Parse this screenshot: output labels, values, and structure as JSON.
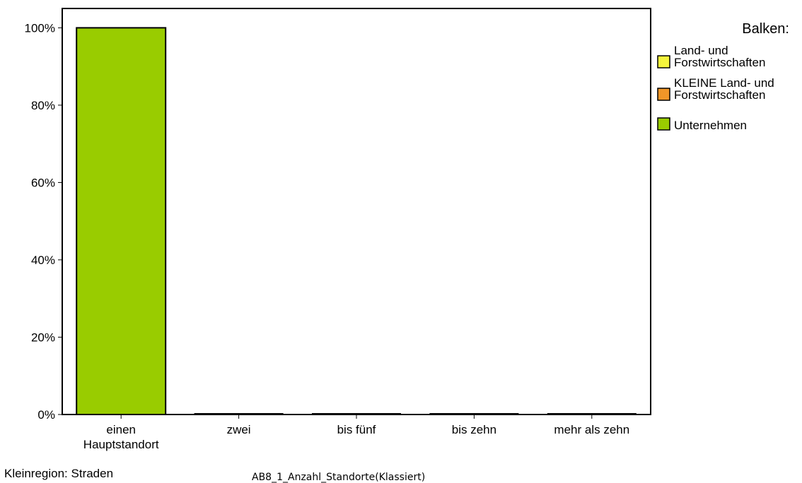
{
  "chart_data": {
    "type": "bar",
    "categories": [
      "einen Hauptstandort",
      "zwei",
      "bis fünf",
      "bis zehn",
      "mehr als zehn"
    ],
    "category_lines": [
      [
        "einen",
        "Hauptstandort"
      ],
      [
        "zwei"
      ],
      [
        "bis fünf"
      ],
      [
        "bis zehn"
      ],
      [
        "mehr als zehn"
      ]
    ],
    "series": [
      {
        "name": "Land- und Forstwirtschaften",
        "color": "#f5f53c",
        "values": [
          0,
          0,
          0,
          0,
          0
        ]
      },
      {
        "name": "KLEINE Land- und Forstwirtschaften",
        "color": "#f09628",
        "values": [
          0,
          0,
          0,
          0,
          0
        ]
      },
      {
        "name": "Unternehmen",
        "color": "#99cc00",
        "values": [
          100,
          0,
          0,
          0,
          0
        ]
      }
    ],
    "ylim": [
      0,
      105
    ],
    "yticks": [
      0,
      20,
      40,
      60,
      80,
      100
    ],
    "ytick_labels": [
      "0%",
      "20%",
      "40%",
      "60%",
      "80%",
      "100%"
    ],
    "xlabel": "AB8_1_Anzahl_Standorte(Klassiert)",
    "ylabel": "",
    "grid": false,
    "legend": {
      "title": "Balken:",
      "placement": "right",
      "entries": [
        {
          "lines": [
            "Land- und",
            "Forstwirtschaften"
          ],
          "color": "#f5f53c"
        },
        {
          "lines": [
            "KLEINE Land- und",
            "Forstwirtschaften"
          ],
          "color": "#f09628"
        },
        {
          "lines": [
            "Unternehmen"
          ],
          "color": "#99cc00"
        }
      ]
    },
    "footer": "Kleinregion: Straden"
  }
}
